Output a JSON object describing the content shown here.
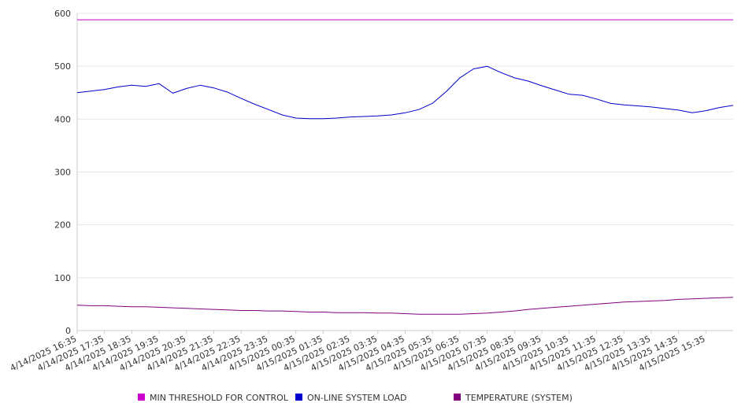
{
  "chart_data": {
    "type": "line",
    "title": "",
    "xlabel": "",
    "ylabel": "",
    "ylim": [
      0,
      600
    ],
    "yticks": [
      0,
      100,
      200,
      300,
      400,
      500,
      600
    ],
    "grid": true,
    "legend_position": "bottom",
    "x_ticks": [
      "4/14/2025 16:35",
      "4/14/2025 17:35",
      "4/14/2025 18:35",
      "4/14/2025 19:35",
      "4/14/2025 20:35",
      "4/14/2025 21:35",
      "4/14/2025 22:35",
      "4/14/2025 23:35",
      "4/15/2025 00:35",
      "4/15/2025 01:35",
      "4/15/2025 02:35",
      "4/15/2025 03:35",
      "4/15/2025 04:35",
      "4/15/2025 05:35",
      "4/15/2025 06:35",
      "4/15/2025 07:35",
      "4/15/2025 08:35",
      "4/15/2025 09:35",
      "4/15/2025 10:35",
      "4/15/2025 11:35",
      "4/15/2025 12:35",
      "4/15/2025 13:35",
      "4/15/2025 14:35",
      "4/15/2025 15:35"
    ],
    "x_points": [
      "4/14/2025 16:35",
      "4/14/2025 17:05",
      "4/14/2025 17:35",
      "4/14/2025 18:05",
      "4/14/2025 18:35",
      "4/14/2025 19:05",
      "4/14/2025 19:35",
      "4/14/2025 20:05",
      "4/14/2025 20:35",
      "4/14/2025 21:05",
      "4/14/2025 21:35",
      "4/14/2025 22:05",
      "4/14/2025 22:35",
      "4/14/2025 23:05",
      "4/14/2025 23:35",
      "4/15/2025 00:05",
      "4/15/2025 00:35",
      "4/15/2025 01:05",
      "4/15/2025 01:35",
      "4/15/2025 02:05",
      "4/15/2025 02:35",
      "4/15/2025 03:05",
      "4/15/2025 03:35",
      "4/15/2025 04:05",
      "4/15/2025 04:35",
      "4/15/2025 05:05",
      "4/15/2025 05:35",
      "4/15/2025 06:05",
      "4/15/2025 06:35",
      "4/15/2025 07:05",
      "4/15/2025 07:35",
      "4/15/2025 08:05",
      "4/15/2025 08:35",
      "4/15/2025 09:05",
      "4/15/2025 09:35",
      "4/15/2025 10:05",
      "4/15/2025 10:35",
      "4/15/2025 11:05",
      "4/15/2025 11:35",
      "4/15/2025 12:05",
      "4/15/2025 12:35",
      "4/15/2025 13:05",
      "4/15/2025 13:35",
      "4/15/2025 14:05",
      "4/15/2025 14:35",
      "4/15/2025 15:05",
      "4/15/2025 15:35",
      "4/15/2025 16:05",
      "4/15/2025 16:35"
    ],
    "series": [
      {
        "name": "MIN THRESHOLD FOR CONTROL",
        "color": "#cc00cc",
        "values": [
          588,
          588,
          588,
          588,
          588,
          588,
          588,
          588,
          588,
          588,
          588,
          588,
          588,
          588,
          588,
          588,
          588,
          588,
          588,
          588,
          588,
          588,
          588,
          588,
          588,
          588,
          588,
          588,
          588,
          588,
          588,
          588,
          588,
          588,
          588,
          588,
          588,
          588,
          588,
          588,
          588,
          588,
          588,
          588,
          588,
          588,
          588,
          588,
          588
        ]
      },
      {
        "name": "ON-LINE SYSTEM LOAD",
        "color": "#0000cc",
        "values": [
          450,
          453,
          456,
          461,
          464,
          462,
          467,
          449,
          458,
          464,
          459,
          451,
          439,
          428,
          418,
          408,
          402,
          401,
          401,
          402,
          404,
          405,
          406,
          408,
          412,
          418,
          430,
          452,
          478,
          495,
          500,
          488,
          478,
          472,
          463,
          455,
          447,
          445,
          438,
          430,
          427,
          425,
          423,
          420,
          417,
          412,
          416,
          422,
          426
        ]
      },
      {
        "name": "TEMPERATURE (SYSTEM)",
        "color": "#800080",
        "values": [
          48,
          47,
          47,
          46,
          45,
          45,
          44,
          43,
          42,
          41,
          40,
          39,
          38,
          38,
          37,
          37,
          36,
          35,
          35,
          34,
          34,
          34,
          33,
          33,
          32,
          31,
          31,
          31,
          31,
          32,
          33,
          35,
          37,
          40,
          42,
          44,
          46,
          48,
          50,
          52,
          54,
          55,
          56,
          57,
          59,
          60,
          61,
          62,
          63
        ]
      }
    ]
  }
}
